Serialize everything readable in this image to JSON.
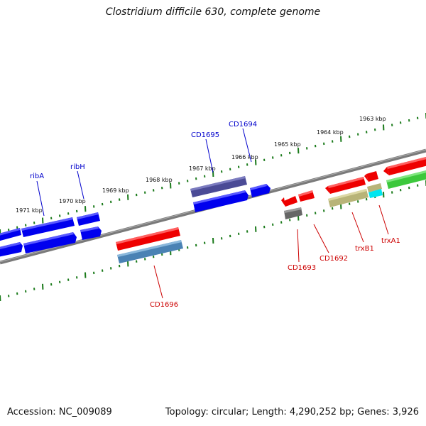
{
  "title": "Clostridium difficile 630, complete genome",
  "footer": {
    "accession": "Accession: NC_009089",
    "summary": "Topology: circular; Length: 4,290,252 bp; Genes: 3,926"
  },
  "scale_labels": [
    "1971 kbp",
    "1970 kbp",
    "1969 kbp",
    "1968 kbp",
    "1967 kbp",
    "1966 kbp",
    "1965 kbp",
    "1964 kbp",
    "1963 kbp"
  ],
  "gene_labels": [
    {
      "name": "ribA",
      "color": "#0000cc"
    },
    {
      "name": "ribH",
      "color": "#0000cc"
    },
    {
      "name": "CD1695",
      "color": "#0000cc"
    },
    {
      "name": "CD1694",
      "color": "#0000cc"
    },
    {
      "name": "CD1696",
      "color": "#cc0000"
    },
    {
      "name": "CD1693",
      "color": "#cc0000"
    },
    {
      "name": "CD1692",
      "color": "#cc0000"
    },
    {
      "name": "trxB1",
      "color": "#cc0000"
    },
    {
      "name": "trxA1",
      "color": "#cc0000"
    }
  ],
  "colors": {
    "backbone": "#808080",
    "ticks": "#1a7a1a",
    "cds_blue": "#0000ee",
    "cds_red": "#ee0000",
    "cds_purple": "#4b4b96",
    "cds_steel": "#4a82b4",
    "cds_gray": "#666666",
    "cds_olive": "#b8b478",
    "cds_green": "#3cc83c",
    "cds_cyan": "#00e6f0"
  }
}
